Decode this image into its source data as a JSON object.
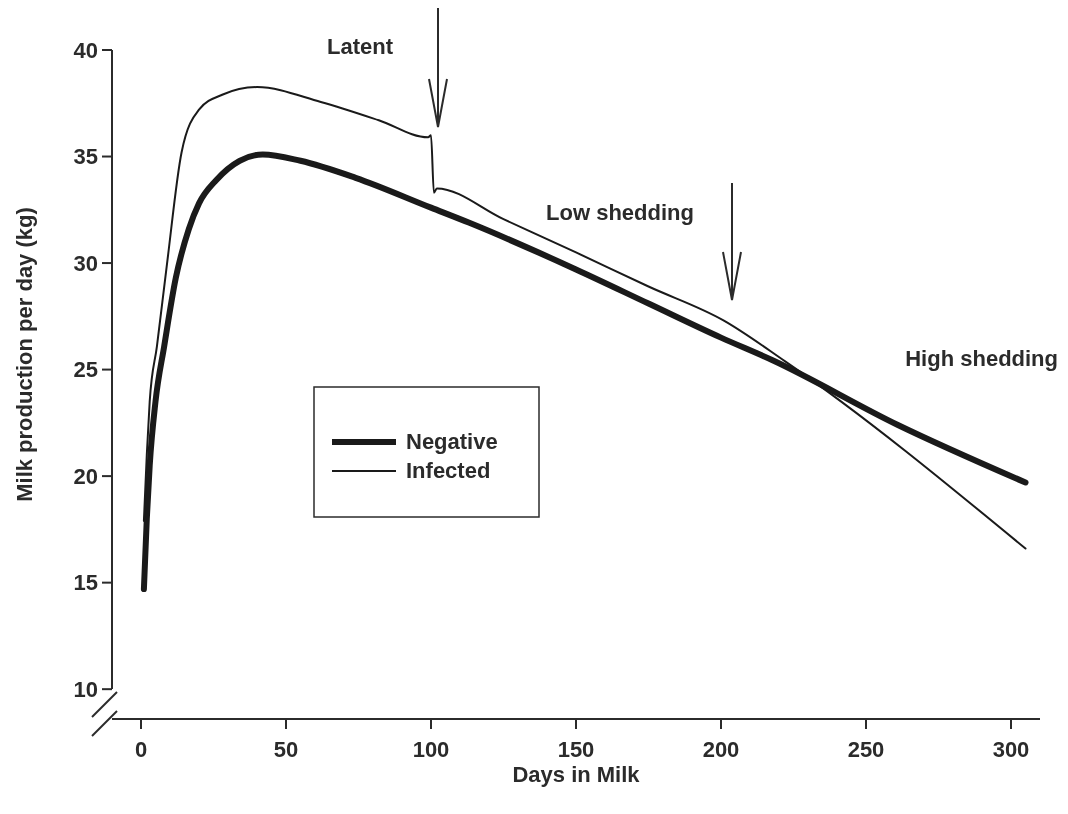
{
  "chart_data": {
    "type": "line",
    "xlabel": "Days in Milk",
    "ylabel": "Milk production per day (kg)",
    "xlim": [
      -10,
      310
    ],
    "ylim": [
      8.6,
      40
    ],
    "xticks": [
      0,
      50,
      100,
      150,
      200,
      250,
      300
    ],
    "yticks": [
      10,
      15,
      20,
      25,
      30,
      35,
      40
    ],
    "grid": false,
    "legend": "left",
    "marker": "none",
    "line_style": "solid",
    "series": [
      {
        "name": "Negative",
        "color": "#1a1a1a",
        "x": [
          1,
          2,
          3,
          5,
          8,
          12,
          16.5,
          20,
          26,
          34,
          42,
          55,
          74,
          100,
          113,
          150,
          175,
          200,
          217.6,
          261,
          305
        ],
        "values": [
          14.7,
          18,
          20.5,
          23.5,
          26.1,
          29.3,
          31.6,
          32.8,
          33.9,
          34.8,
          35.1,
          34.8,
          34,
          32.6,
          31.9,
          29.7,
          28.1,
          26.5,
          25.45,
          22.4,
          19.7
        ]
      },
      {
        "name": "Infected",
        "color": "#1a1a1a",
        "x": [
          1,
          2,
          3,
          5.5,
          9,
          14,
          20,
          28,
          40,
          62,
          82,
          99,
          100,
          101,
          102,
          125,
          150,
          175,
          201,
          222,
          305
        ],
        "values": [
          17.9,
          21,
          23.5,
          26.1,
          30,
          35.2,
          37.2,
          37.9,
          38.26,
          37.56,
          36.7,
          35.9,
          36,
          33.3,
          33.5,
          32.06,
          30.5,
          28.9,
          27.3,
          25.4,
          16.6
        ]
      }
    ],
    "annotations": [
      "Latent",
      "Low shedding",
      "High shedding"
    ]
  }
}
